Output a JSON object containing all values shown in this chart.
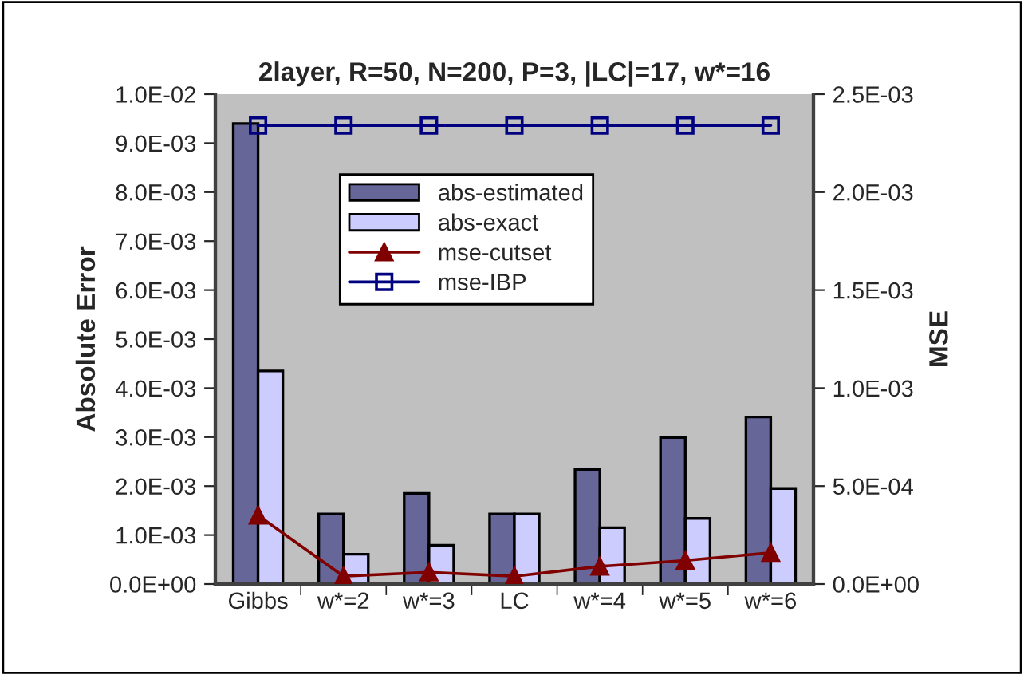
{
  "chart_data": {
    "type": "bar",
    "title": "2layer, R=50, N=200, P=3, |LC|=17, w*=16",
    "categories": [
      "Gibbs",
      "w*=2",
      "w*=3",
      "LC",
      "w*=4",
      "w*=5",
      "w*=6"
    ],
    "ylabel": "Absolute Error",
    "y2label": "MSE",
    "series": [
      {
        "name": "abs-estimated",
        "color": "#666699",
        "values": [
          0.0094,
          0.00143,
          0.00185,
          0.00143,
          0.00234,
          0.00299,
          0.00341
        ]
      },
      {
        "name": "abs-exact",
        "color": "#ccccff",
        "values": [
          0.00435,
          0.00061,
          0.00079,
          0.00143,
          0.00115,
          0.00134,
          0.00195
        ]
      },
      {
        "name": "mse-cutset",
        "type": "line",
        "axis": "y2",
        "marker": "triangle",
        "color": "#800000",
        "values": [
          0.00035,
          4e-05,
          6e-05,
          4e-05,
          9e-05,
          0.00012,
          0.00016
        ]
      },
      {
        "name": "mse-IBP",
        "type": "line",
        "axis": "y2",
        "marker": "square",
        "color": "#000080",
        "values": [
          0.00234,
          0.00234,
          0.00234,
          0.00234,
          0.00234,
          0.00234,
          0.00234
        ]
      }
    ],
    "ylim": [
      0,
      0.01
    ],
    "yticks": [
      {
        "value": 0,
        "label": "0.0E+00"
      },
      {
        "value": 0.001,
        "label": "1.0E-03"
      },
      {
        "value": 0.002,
        "label": "2.0E-03"
      },
      {
        "value": 0.003,
        "label": "3.0E-03"
      },
      {
        "value": 0.004,
        "label": "4.0E-03"
      },
      {
        "value": 0.005,
        "label": "5.0E-03"
      },
      {
        "value": 0.006,
        "label": "6.0E-03"
      },
      {
        "value": 0.007,
        "label": "7.0E-03"
      },
      {
        "value": 0.008,
        "label": "8.0E-03"
      },
      {
        "value": 0.009,
        "label": "9.0E-03"
      },
      {
        "value": 0.01,
        "label": "1.0E-02"
      }
    ],
    "y2lim": [
      0,
      0.0025
    ],
    "y2ticks": [
      {
        "value": 0,
        "label": "0.0E+00"
      },
      {
        "value": 0.0005,
        "label": "5.0E-04"
      },
      {
        "value": 0.001,
        "label": "1.0E-03"
      },
      {
        "value": 0.0015,
        "label": "1.5E-03"
      },
      {
        "value": 0.002,
        "label": "2.0E-03"
      },
      {
        "value": 0.0025,
        "label": "2.5E-03"
      }
    ],
    "grid": false,
    "legend": "upper center"
  }
}
